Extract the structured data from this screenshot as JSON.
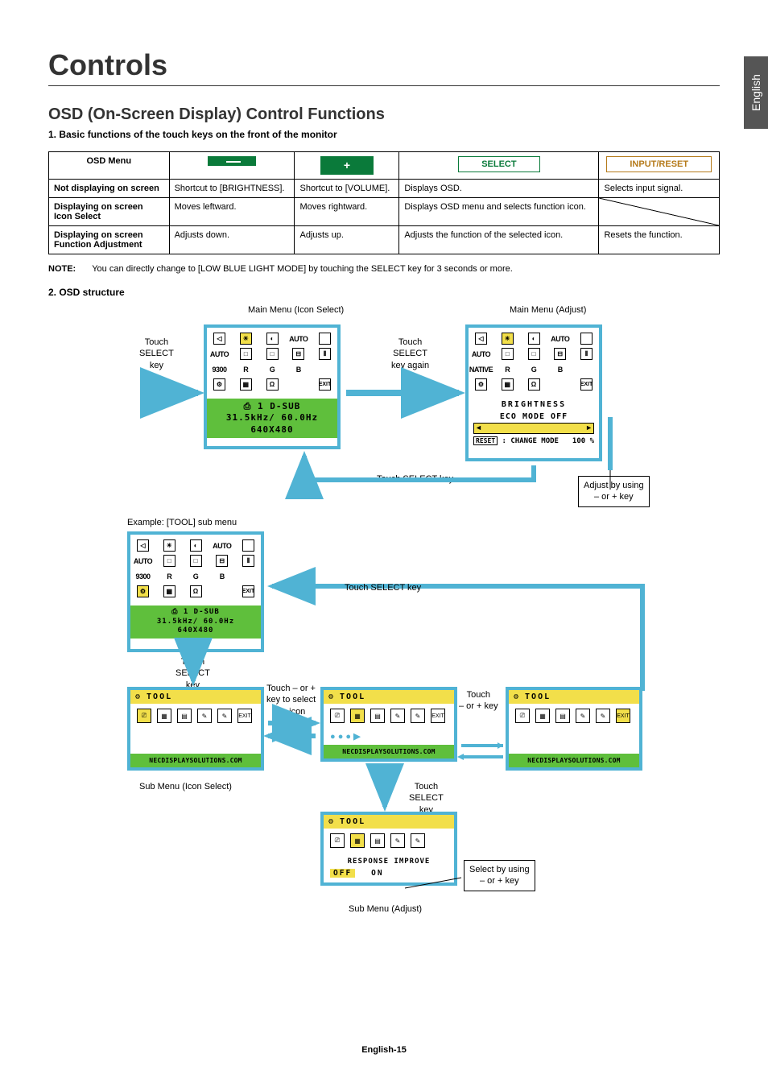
{
  "language_tab": "English",
  "title": "Controls",
  "subtitle": "OSD (On-Screen Display) Control Functions",
  "section1": "1. Basic functions of the touch keys on the front of the monitor",
  "table": {
    "headers": [
      "OSD Menu",
      "−",
      "+",
      "SELECT",
      "INPUT/RESET"
    ],
    "rows": [
      {
        "h": "Not displaying on screen",
        "c": [
          "Shortcut to [BRIGHTNESS].",
          "Shortcut to [VOLUME].",
          "Displays OSD.",
          "Selects input signal."
        ]
      },
      {
        "h": "Displaying on screen\nIcon Select",
        "c": [
          "Moves leftward.",
          "Moves rightward.",
          "Displays OSD menu and selects function icon.",
          "__NOCELL__"
        ]
      },
      {
        "h": "Displaying on screen\nFunction Adjustment",
        "c": [
          "Adjusts down.",
          "Adjusts up.",
          "Adjusts the function of the selected icon.",
          "Resets the function."
        ]
      }
    ]
  },
  "note_label": "NOTE:",
  "note_text": "You can directly change to [LOW BLUE LIGHT MODE] by touching the SELECT key for 3 seconds or more.",
  "section2": "2. OSD structure",
  "labels": {
    "main_icon": "Main Menu (Icon Select)",
    "main_adjust": "Main Menu (Adjust)",
    "touch_select": "Touch\nSELECT\nkey",
    "touch_select_again": "Touch\nSELECT\nkey again",
    "touch_select_line": "Touch SELECT key",
    "adjust_callout": "Adjust by using\n– or + key",
    "example": "Example: [TOOL] sub menu",
    "touch_pm_select": "Touch – or +\nkey to select\nan icon",
    "touch_pm": "Touch\n– or + key",
    "sub_icon": "Sub Menu (Icon Select)",
    "sub_adjust": "Sub Menu (Adjust)",
    "select_callout": "Select by using\n– or + key"
  },
  "osd1": {
    "info1": "⎙ 1  D-SUB",
    "info2": "31.5kHz/ 60.0Hz",
    "info3": "640X480"
  },
  "osd2": {
    "t1": "BRIGHTNESS",
    "t2": "ECO MODE OFF",
    "mode": ": CHANGE MODE",
    "pct": "100 %",
    "reset": "RESET"
  },
  "tool": {
    "title": "TOOL",
    "url": "NECDISPLAYSOLUTIONS.COM",
    "resp": "RESPONSE IMPROVE",
    "off": "OFF",
    "on": "ON"
  },
  "colors": {
    "border": "#50b3d4",
    "green_band": "#5fbf3c",
    "yellow": "#f2df4a",
    "select_green": "#0a7a3a",
    "input_amber": "#b57a1a"
  },
  "footer": "English-15"
}
